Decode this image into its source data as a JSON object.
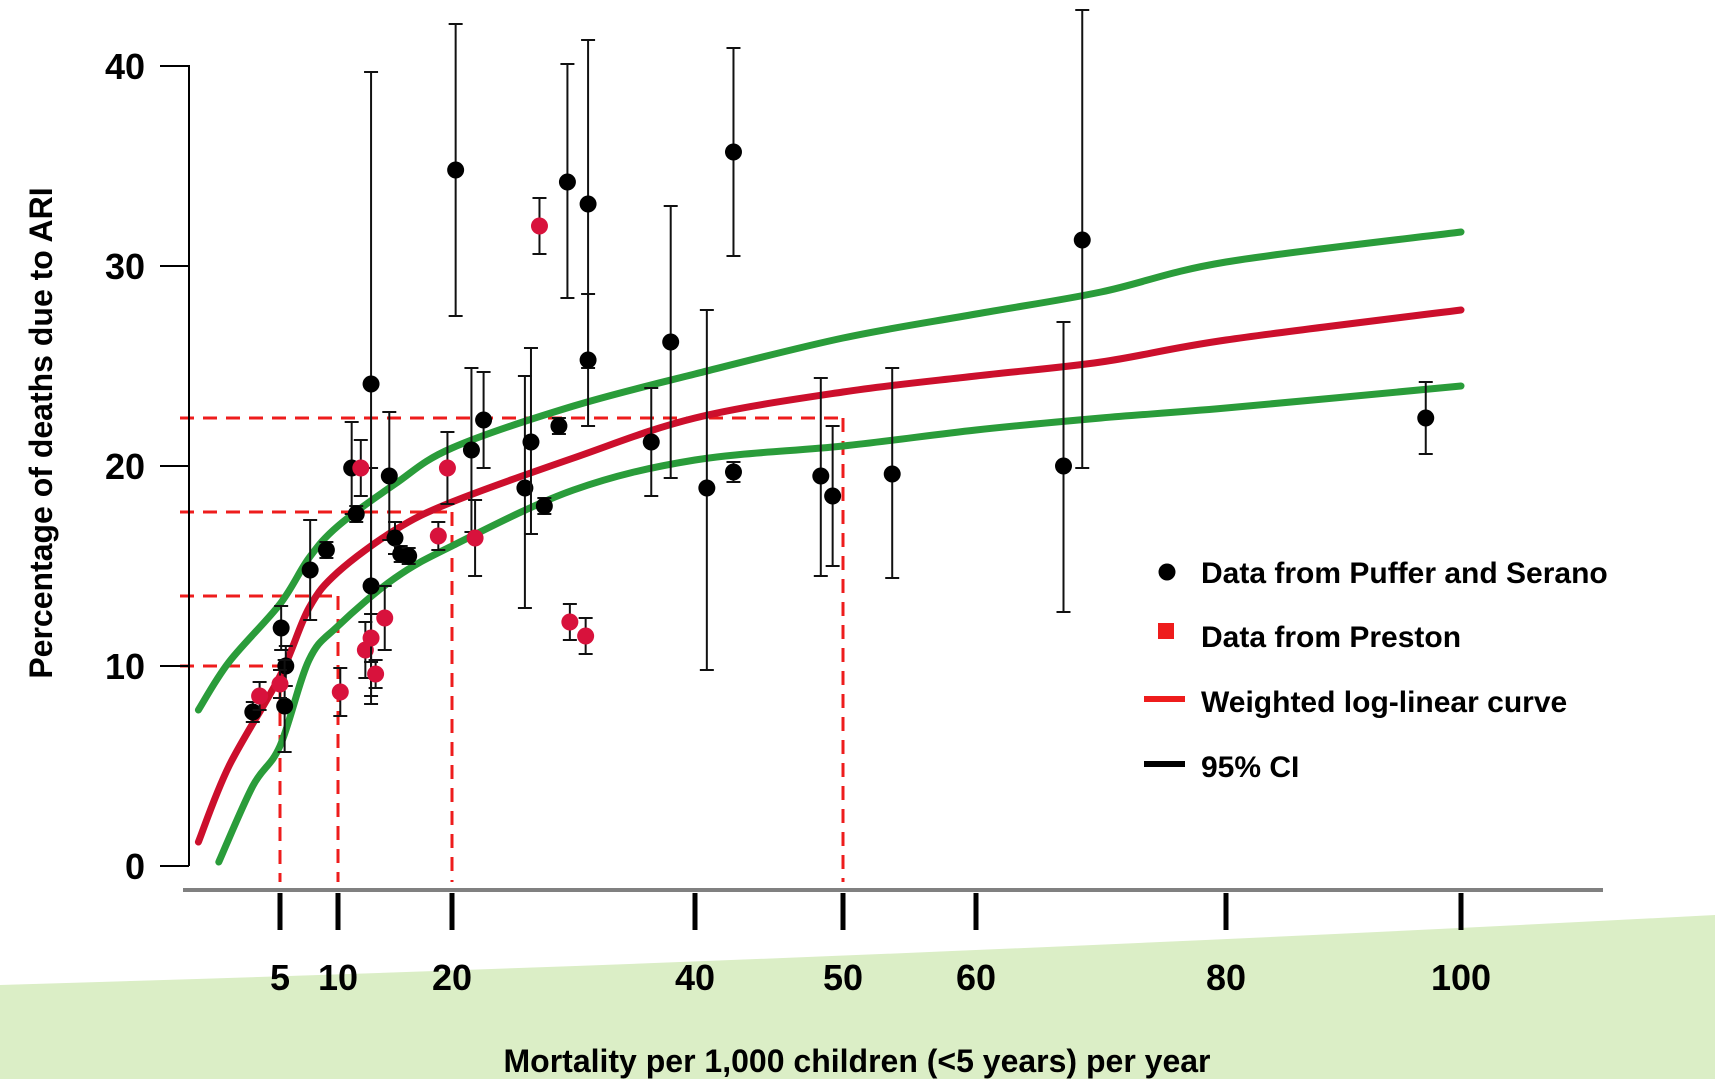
{
  "chart_data": {
    "type": "scatter",
    "title": "",
    "xlabel": "Mortality per 1,000 children (<5 years) per year",
    "ylabel": "Percentage of deaths due to ARI",
    "x_ticks": [
      "5",
      "10",
      "20",
      "40",
      "50",
      "60",
      "80",
      "100"
    ],
    "y_ticks": [
      "0",
      "10",
      "20",
      "30",
      "40"
    ],
    "ylim": [
      0,
      40
    ],
    "legend_position": "right",
    "colors": {
      "puffer": "#000000",
      "preston": "#d8123c",
      "fit": "#cc0f2c",
      "ci": "#2a9c3a",
      "guide": "#ee1c1c",
      "axis": "#808080",
      "footer_band": "#dbeec6"
    },
    "series": [
      {
        "name": "Data from Puffer and Serano",
        "points": [
          {
            "x": 4.2,
            "y": 7.7,
            "lo": 7.2,
            "hi": 8.2
          },
          {
            "x": 5.1,
            "y": 11.9,
            "lo": 10.8,
            "hi": 13.0
          },
          {
            "x": 5.5,
            "y": 10.0,
            "lo": 9.0,
            "hi": 11.0
          },
          {
            "x": 5.4,
            "y": 8.0,
            "lo": 5.7,
            "hi": 10.3
          },
          {
            "x": 7.6,
            "y": 14.8,
            "lo": 12.3,
            "hi": 17.3
          },
          {
            "x": 9.0,
            "y": 15.8,
            "lo": 15.4,
            "hi": 16.2
          },
          {
            "x": 11.2,
            "y": 19.9,
            "lo": 17.6,
            "hi": 22.2
          },
          {
            "x": 11.6,
            "y": 17.6,
            "lo": 17.2,
            "hi": 18.0
          },
          {
            "x": 12.9,
            "y": 24.1,
            "lo": 8.5,
            "hi": 39.7
          },
          {
            "x": 12.9,
            "y": 14.0,
            "lo": 8.1,
            "hi": 19.9
          },
          {
            "x": 14.5,
            "y": 19.5,
            "lo": 16.3,
            "hi": 22.7
          },
          {
            "x": 15.0,
            "y": 16.4,
            "lo": 15.6,
            "hi": 17.2
          },
          {
            "x": 15.5,
            "y": 15.6,
            "lo": 15.2,
            "hi": 16.0
          },
          {
            "x": 16.2,
            "y": 15.5,
            "lo": 15.1,
            "hi": 15.9
          },
          {
            "x": 20.3,
            "y": 34.8,
            "lo": 27.5,
            "hi": 42.1
          },
          {
            "x": 21.6,
            "y": 20.8,
            "lo": 16.7,
            "hi": 24.9
          },
          {
            "x": 22.6,
            "y": 22.3,
            "lo": 19.9,
            "hi": 24.7
          },
          {
            "x": 26.0,
            "y": 18.9,
            "lo": 12.9,
            "hi": 24.5
          },
          {
            "x": 26.5,
            "y": 21.2,
            "lo": 16.6,
            "hi": 25.9
          },
          {
            "x": 27.6,
            "y": 18.0,
            "lo": 17.6,
            "hi": 18.4
          },
          {
            "x": 28.8,
            "y": 22.0,
            "lo": 21.6,
            "hi": 22.4
          },
          {
            "x": 29.5,
            "y": 34.2,
            "lo": 28.4,
            "hi": 40.1
          },
          {
            "x": 31.2,
            "y": 33.1,
            "lo": 24.9,
            "hi": 41.3
          },
          {
            "x": 31.2,
            "y": 25.3,
            "lo": 22.0,
            "hi": 28.6
          },
          {
            "x": 36.4,
            "y": 21.2,
            "lo": 18.5,
            "hi": 23.9
          },
          {
            "x": 38.0,
            "y": 26.2,
            "lo": 19.4,
            "hi": 33.0
          },
          {
            "x": 40.8,
            "y": 18.9,
            "lo": 9.8,
            "hi": 27.8
          },
          {
            "x": 42.6,
            "y": 35.7,
            "lo": 30.5,
            "hi": 40.9
          },
          {
            "x": 42.6,
            "y": 19.7,
            "lo": 19.2,
            "hi": 20.2
          },
          {
            "x": 48.5,
            "y": 19.5,
            "lo": 14.5,
            "hi": 24.4
          },
          {
            "x": 49.3,
            "y": 18.5,
            "lo": 15.0,
            "hi": 22.0
          },
          {
            "x": 53.7,
            "y": 19.6,
            "lo": 14.4,
            "hi": 24.9
          },
          {
            "x": 67.0,
            "y": 20.0,
            "lo": 12.7,
            "hi": 27.2
          },
          {
            "x": 68.5,
            "y": 31.3,
            "lo": 19.9,
            "hi": 42.8
          },
          {
            "x": 97.0,
            "y": 22.4,
            "lo": 20.6,
            "hi": 24.2
          }
        ]
      },
      {
        "name": "Data from Preston",
        "points": [
          {
            "x": 4.4,
            "y": 8.5,
            "lo": 7.8,
            "hi": 9.2
          },
          {
            "x": 5.0,
            "y": 9.1,
            "lo": 8.4,
            "hi": 9.8
          },
          {
            "x": 10.2,
            "y": 8.7,
            "lo": 7.5,
            "hi": 9.9
          },
          {
            "x": 12.0,
            "y": 19.9,
            "lo": 18.5,
            "hi": 21.3
          },
          {
            "x": 12.4,
            "y": 10.8,
            "lo": 9.4,
            "hi": 12.2
          },
          {
            "x": 12.9,
            "y": 11.4,
            "lo": 10.2,
            "hi": 12.6
          },
          {
            "x": 13.3,
            "y": 9.6,
            "lo": 8.9,
            "hi": 10.3
          },
          {
            "x": 14.1,
            "y": 12.4,
            "lo": 10.8,
            "hi": 14.0
          },
          {
            "x": 18.8,
            "y": 16.5,
            "lo": 15.8,
            "hi": 17.2
          },
          {
            "x": 19.6,
            "y": 19.9,
            "lo": 18.1,
            "hi": 21.7
          },
          {
            "x": 21.9,
            "y": 16.4,
            "lo": 14.5,
            "hi": 18.3
          },
          {
            "x": 27.2,
            "y": 32.0,
            "lo": 30.6,
            "hi": 33.4
          },
          {
            "x": 29.7,
            "y": 12.2,
            "lo": 11.3,
            "hi": 13.1
          },
          {
            "x": 31.0,
            "y": 11.5,
            "lo": 10.6,
            "hi": 12.4
          }
        ]
      }
    ],
    "legend": [
      {
        "label": "Data from Puffer and Serano",
        "marker": "circle",
        "color": "#000000"
      },
      {
        "label": "Data from Preston",
        "marker": "square",
        "color": "#ee1c1c"
      },
      {
        "label": "Weighted log-linear curve",
        "marker": "line",
        "color": "#ee1c1c"
      },
      {
        "label": "95% CI",
        "marker": "line",
        "color": "#000000"
      }
    ],
    "curves": {
      "fit": [
        [
          2.6,
          1.2
        ],
        [
          3.5,
          5.0
        ],
        [
          5,
          9.5
        ],
        [
          7.5,
          12.9
        ],
        [
          10,
          14.7
        ],
        [
          15,
          16.8
        ],
        [
          20,
          18.2
        ],
        [
          30,
          20.4
        ],
        [
          40,
          22.4
        ],
        [
          50,
          23.7
        ],
        [
          60,
          24.5
        ],
        [
          70,
          25.2
        ],
        [
          80,
          26.3
        ],
        [
          100,
          27.8
        ]
      ],
      "ci_upper": [
        [
          2.6,
          7.8
        ],
        [
          3.5,
          10.2
        ],
        [
          5,
          13.1
        ],
        [
          7.5,
          15.4
        ],
        [
          10,
          17.0
        ],
        [
          15,
          19.1
        ],
        [
          20,
          20.9
        ],
        [
          30,
          23.0
        ],
        [
          40,
          24.6
        ],
        [
          50,
          26.4
        ],
        [
          60,
          27.6
        ],
        [
          70,
          28.7
        ],
        [
          80,
          30.2
        ],
        [
          100,
          31.7
        ]
      ],
      "ci_lower": [
        [
          3.2,
          0.2
        ],
        [
          4.2,
          4.0
        ],
        [
          5,
          6.0
        ],
        [
          7.5,
          10.3
        ],
        [
          10,
          12.0
        ],
        [
          15,
          14.4
        ],
        [
          20,
          16.0
        ],
        [
          30,
          18.8
        ],
        [
          40,
          20.3
        ],
        [
          50,
          21.0
        ],
        [
          60,
          21.8
        ],
        [
          70,
          22.4
        ],
        [
          80,
          22.9
        ],
        [
          100,
          24.0
        ]
      ]
    },
    "guides": [
      {
        "x": 5,
        "y": 10.0
      },
      {
        "x": 10,
        "y": 13.5
      },
      {
        "x": 20,
        "y": 17.7
      },
      {
        "x": 50,
        "y": 22.4
      }
    ]
  }
}
